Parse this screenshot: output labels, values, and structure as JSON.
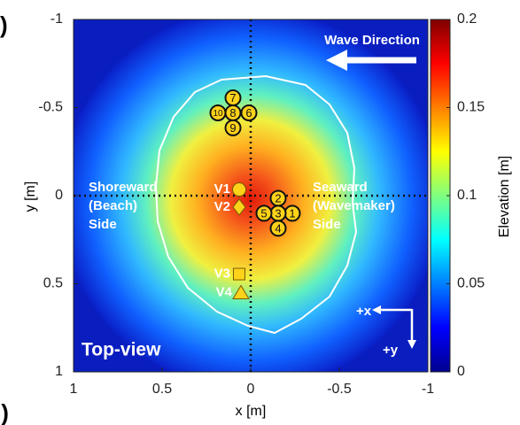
{
  "chart_data": {
    "type": "heatmap",
    "colormap": "jet",
    "panel_labels": [
      ")",
      "l)"
    ],
    "xlabel": "x [m]",
    "ylabel": "y [m]",
    "xlim": [
      1,
      -1
    ],
    "xticks": [
      1,
      0.5,
      0,
      -0.5,
      -1
    ],
    "ylim": [
      -1,
      1
    ],
    "yticks": [
      -1,
      -0.5,
      0,
      0.5,
      1
    ],
    "colorbar_label": "Elevation [m]",
    "clim": [
      0,
      0.2
    ],
    "cticks": [
      0,
      0.05,
      0.1,
      0.15,
      0.2
    ],
    "crosshair": {
      "x": 0,
      "y": 0
    },
    "annotations": {
      "wave_direction": "Wave Direction",
      "top_view": "Top-view",
      "plus_x": "+x",
      "plus_y": "+y",
      "shoreward": [
        "Shoreward",
        "(Beach)",
        "Side"
      ],
      "seaward": [
        "Seaward",
        "(Wavemaker)",
        "Side"
      ]
    },
    "gauges": [
      {
        "label": "1",
        "x": -0.235,
        "y": 0.1
      },
      {
        "label": "2",
        "x": -0.155,
        "y": 0.015
      },
      {
        "label": "3",
        "x": -0.155,
        "y": 0.1
      },
      {
        "label": "4",
        "x": -0.155,
        "y": 0.185
      },
      {
        "label": "5",
        "x": -0.075,
        "y": 0.1
      },
      {
        "label": "6",
        "x": 0.01,
        "y": -0.47
      },
      {
        "label": "7",
        "x": 0.1,
        "y": -0.555
      },
      {
        "label": "8",
        "x": 0.1,
        "y": -0.47
      },
      {
        "label": "9",
        "x": 0.1,
        "y": -0.385
      },
      {
        "label": "10",
        "x": 0.185,
        "y": -0.47
      }
    ],
    "sensors": [
      {
        "label": "V1",
        "shape": "circle",
        "x": 0.065,
        "y": -0.035
      },
      {
        "label": "V2",
        "shape": "diamond",
        "x": 0.065,
        "y": 0.065
      },
      {
        "label": "V3",
        "shape": "square",
        "x": 0.065,
        "y": 0.445
      },
      {
        "label": "V4",
        "shape": "triangle",
        "x": 0.055,
        "y": 0.55
      }
    ],
    "marker_color": "#ffd21a"
  }
}
